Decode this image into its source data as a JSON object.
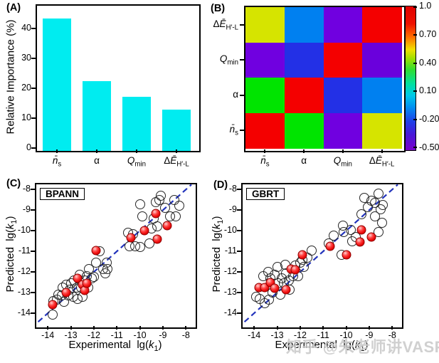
{
  "watermark": {
    "text": "知乎 @朱老师讲VASP",
    "color": "#c8c8c8"
  },
  "chart_data": [
    {
      "id": "A",
      "type": "bar",
      "tag": "(A)",
      "ylabel": "Relative Importance (%)",
      "categories": [
        "n̄s",
        "α",
        "Qmin",
        "ΔĒH′-L"
      ],
      "categories_html": [
        "<i>n̄</i><sub>s</sub>",
        "α",
        "<i>Q</i><sub>min</sub>",
        "Δ<i>Ē</i><sub>H′-L</sub>"
      ],
      "values": [
        44.2,
        23.2,
        18.0,
        13.8
      ],
      "bar_color": "#00ecf0",
      "ylim": [
        0,
        47.5
      ],
      "yticks": [
        "0",
        "10",
        "20",
        "30",
        "40"
      ]
    },
    {
      "id": "B",
      "type": "heatmap",
      "tag": "(B)",
      "rows_top_to_bottom": [
        "ΔĒH′-L",
        "Qmin",
        "α",
        "n̄s"
      ],
      "rows_html": [
        "Δ<i>Ē</i><sub>H′-L</sub>",
        "<i>Q</i><sub>min</sub>",
        "α",
        "<i>n̄</i><sub>s</sub>"
      ],
      "cols_left_to_right": [
        "n̄s",
        "α",
        "Qmin",
        "ΔĒH′-L"
      ],
      "cols_html": [
        "<i>n̄</i><sub>s</sub>",
        "α",
        "<i>Q</i><sub>min</sub>",
        "Δ<i>Ē</i><sub>H′-L</sub>"
      ],
      "values": [
        [
          0.5,
          0.05,
          -0.45,
          1.0
        ],
        [
          -0.45,
          -0.18,
          1.0,
          -0.45
        ],
        [
          0.28,
          1.0,
          -0.18,
          0.05
        ],
        [
          1.0,
          0.28,
          -0.45,
          0.5
        ]
      ],
      "cell_colors": [
        [
          "#d6e400",
          "#0080f0",
          "#7000e0",
          "#f40000"
        ],
        [
          "#7000e0",
          "#2330e6",
          "#f40000",
          "#6a00dc"
        ],
        [
          "#00e400",
          "#f40000",
          "#2330e6",
          "#0080f0"
        ],
        [
          "#f40000",
          "#00e400",
          "#7000e0",
          "#d6e400"
        ]
      ],
      "colorbar": {
        "min": -0.5,
        "max": 1.0,
        "ticks": [
          "1.0",
          "0.70",
          "0.40",
          "0.10",
          "-0.20",
          "-0.50"
        ],
        "colormap": [
          [
            "#7a00cc",
            0
          ],
          [
            "#4818d8",
            0.11
          ],
          [
            "#2040e8",
            0.2
          ],
          [
            "#0090f0",
            0.3
          ],
          [
            "#00c8e8",
            0.38
          ],
          [
            "#00e0a0",
            0.46
          ],
          [
            "#30dd30",
            0.56
          ],
          [
            "#a0e000",
            0.64
          ],
          [
            "#f0e000",
            0.7
          ],
          [
            "#ff6a00",
            0.79
          ],
          [
            "#ee1000",
            0.88
          ],
          [
            "#e00000",
            1
          ]
        ]
      }
    },
    {
      "id": "C",
      "type": "scatter",
      "tag": "(C)",
      "label": "BPANN",
      "xlabel": "Experimental lg(k1)",
      "ylabel": "Predicted lg(k1)",
      "xlabel_html": "Experimental&nbsp; lg(<i>k</i><sub>1</sub>)",
      "ylabel_html": "Predicted&nbsp; lg(<i>k</i><sub>1</sub>)",
      "xlim": [
        -14.5,
        -7.7
      ],
      "ylim": [
        -14.55,
        -7.75
      ],
      "xticks": [
        "-14",
        "-13",
        "-12",
        "-11",
        "-10",
        "-9",
        "-8"
      ],
      "yticks": [
        "-8",
        "-9",
        "-10",
        "-11",
        "-12",
        "-13",
        "-14"
      ],
      "identity_line": {
        "color": "#2233bb",
        "dash": true
      },
      "series": [
        {
          "name": "open-circles",
          "marker": "open-circle",
          "color": "#262626",
          "points": [
            [
              -13.8,
              -14.05
            ],
            [
              -13.75,
              -13.4
            ],
            [
              -13.6,
              -13.35
            ],
            [
              -13.55,
              -13.1
            ],
            [
              -13.4,
              -13.15
            ],
            [
              -13.35,
              -12.75
            ],
            [
              -13.3,
              -13.45
            ],
            [
              -13.2,
              -12.6
            ],
            [
              -13.1,
              -13.15
            ],
            [
              -13.05,
              -12.85
            ],
            [
              -13.0,
              -12.55
            ],
            [
              -12.9,
              -13.2
            ],
            [
              -12.85,
              -12.4
            ],
            [
              -12.75,
              -12.75
            ],
            [
              -12.7,
              -13.3
            ],
            [
              -12.6,
              -12.15
            ],
            [
              -12.55,
              -12.75
            ],
            [
              -12.5,
              -13.2
            ],
            [
              -12.4,
              -12.4
            ],
            [
              -12.3,
              -12.2
            ],
            [
              -12.25,
              -12.75
            ],
            [
              -12.2,
              -11.85
            ],
            [
              -12.1,
              -12.3
            ],
            [
              -12.0,
              -12.25
            ],
            [
              -11.9,
              -11.55
            ],
            [
              -11.75,
              -11.0
            ],
            [
              -11.6,
              -11.85
            ],
            [
              -11.5,
              -12.05
            ],
            [
              -11.45,
              -11.55
            ],
            [
              -11.4,
              -11.85
            ],
            [
              -10.5,
              -10.1
            ],
            [
              -10.45,
              -10.75
            ],
            [
              -10.3,
              -10.15
            ],
            [
              -10.2,
              -10.75
            ],
            [
              -10.0,
              -8.7
            ],
            [
              -10.0,
              -10.8
            ],
            [
              -9.9,
              -9.3
            ],
            [
              -9.6,
              -10.6
            ],
            [
              -9.5,
              -9.9
            ],
            [
              -9.4,
              -9.4
            ],
            [
              -9.3,
              -8.6
            ],
            [
              -9.25,
              -9.8
            ],
            [
              -9.15,
              -8.5
            ],
            [
              -9.1,
              -8.3
            ],
            [
              -8.9,
              -8.9
            ],
            [
              -8.7,
              -9.3
            ],
            [
              -8.5,
              -8.5
            ],
            [
              -8.45,
              -9.3
            ],
            [
              -8.3,
              -8.8
            ]
          ]
        },
        {
          "name": "red-spheres",
          "marker": "filled-sphere",
          "color": "#ee1111",
          "points": [
            [
              -13.8,
              -13.6
            ],
            [
              -13.2,
              -13.0
            ],
            [
              -12.7,
              -12.3
            ],
            [
              -12.5,
              -12.6
            ],
            [
              -12.4,
              -12.9
            ],
            [
              -12.3,
              -12.55
            ],
            [
              -11.9,
              -10.95
            ],
            [
              -10.4,
              -10.35
            ],
            [
              -9.8,
              -10.0
            ],
            [
              -9.3,
              -9.15
            ],
            [
              -9.25,
              -10.4
            ],
            [
              -8.8,
              -9.75
            ]
          ]
        }
      ]
    },
    {
      "id": "D",
      "type": "scatter",
      "tag": "(D)",
      "label": "GBRT",
      "xlabel": "Experimental lg(k1)",
      "ylabel": "Predicted lg(k1)",
      "xlabel_html": "Experimental&nbsp; lg(<i>k</i><sub>1</sub>)",
      "ylabel_html": "Predicted&nbsp; lg(<i>k</i><sub>1</sub>)",
      "xlim": [
        -14.5,
        -7.7
      ],
      "ylim": [
        -14.55,
        -7.75
      ],
      "xticks": [
        "-14",
        "-13",
        "-12",
        "-11",
        "-10",
        "-9",
        "-8"
      ],
      "yticks": [
        "-8",
        "-9",
        "-10",
        "-11",
        "-12",
        "-13",
        "-14"
      ],
      "identity_line": {
        "color": "#2233bb",
        "dash": true
      },
      "series": [
        {
          "name": "open-circles",
          "marker": "open-circle",
          "color": "#262626",
          "points": [
            [
              -13.9,
              -13.2
            ],
            [
              -13.75,
              -13.3
            ],
            [
              -13.6,
              -12.2
            ],
            [
              -13.55,
              -13.5
            ],
            [
              -13.4,
              -12.0
            ],
            [
              -13.35,
              -13.35
            ],
            [
              -13.3,
              -12.3
            ],
            [
              -13.2,
              -13.0
            ],
            [
              -13.1,
              -12.15
            ],
            [
              -13.0,
              -11.75
            ],
            [
              -12.95,
              -12.55
            ],
            [
              -12.85,
              -13.1
            ],
            [
              -12.8,
              -12.3
            ],
            [
              -12.7,
              -12.55
            ],
            [
              -12.65,
              -11.65
            ],
            [
              -12.6,
              -12.05
            ],
            [
              -12.5,
              -12.4
            ],
            [
              -12.45,
              -12.85
            ],
            [
              -12.3,
              -12.2
            ],
            [
              -12.2,
              -11.7
            ],
            [
              -12.1,
              -12.2
            ],
            [
              -12.0,
              -11.55
            ],
            [
              -11.9,
              -11.4
            ],
            [
              -11.85,
              -11.75
            ],
            [
              -11.7,
              -11.3
            ],
            [
              -11.5,
              -10.95
            ],
            [
              -10.75,
              -10.6
            ],
            [
              -10.55,
              -10.25
            ],
            [
              -10.2,
              -11.15
            ],
            [
              -10.15,
              -9.75
            ],
            [
              -10.1,
              -10.05
            ],
            [
              -9.8,
              -9.95
            ],
            [
              -9.75,
              -10.5
            ],
            [
              -9.6,
              -10.3
            ],
            [
              -9.35,
              -9.2
            ],
            [
              -9.2,
              -8.4
            ],
            [
              -9.05,
              -8.85
            ],
            [
              -8.9,
              -8.55
            ],
            [
              -8.75,
              -9.3
            ],
            [
              -8.75,
              -8.65
            ],
            [
              -8.6,
              -8.2
            ],
            [
              -8.6,
              -10.05
            ],
            [
              -8.5,
              -8.95
            ],
            [
              -8.45,
              -9.6
            ],
            [
              -8.4,
              -8.75
            ]
          ]
        },
        {
          "name": "red-spheres",
          "marker": "filled-sphere",
          "color": "#ee1111",
          "points": [
            [
              -13.8,
              -12.75
            ],
            [
              -13.55,
              -12.75
            ],
            [
              -13.3,
              -12.5
            ],
            [
              -13.1,
              -12.8
            ],
            [
              -12.6,
              -12.85
            ],
            [
              -12.4,
              -11.85
            ],
            [
              -12.2,
              -11.9
            ],
            [
              -11.9,
              -11.15
            ],
            [
              -10.7,
              -10.75
            ],
            [
              -10.0,
              -11.15
            ],
            [
              -9.4,
              -10.55
            ],
            [
              -9.35,
              -9.95
            ],
            [
              -8.9,
              -10.3
            ]
          ]
        }
      ]
    }
  ]
}
